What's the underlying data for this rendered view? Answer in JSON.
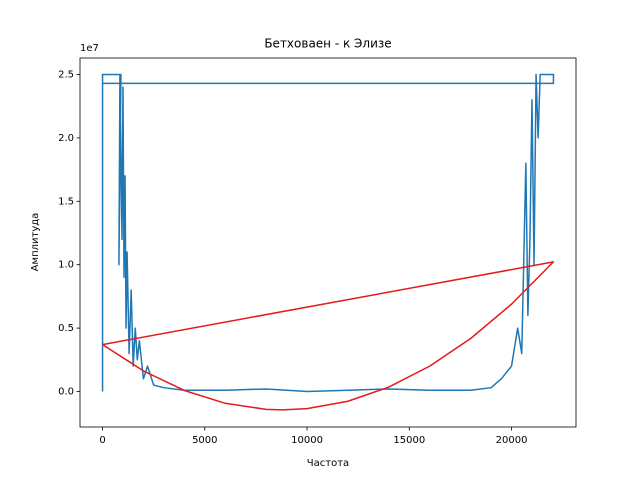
{
  "chart_data": {
    "type": "line",
    "title": "Бетховаен - к Элизе",
    "x_label": "Частота",
    "y_label": "Амплитуда",
    "y_offset_label": "1e7",
    "xlim": [
      -1102.5,
      23152.5
    ],
    "ylim": [
      -0.28,
      2.63
    ],
    "xticks": [
      0,
      5000,
      10000,
      15000,
      20000
    ],
    "yticks": [
      {
        "value": 0,
        "label": "0.0"
      },
      {
        "value": 0.5,
        "label": "0.5"
      },
      {
        "value": 1,
        "label": "1.0"
      },
      {
        "value": 1.5,
        "label": "1.5"
      },
      {
        "value": 2,
        "label": "2.0"
      },
      {
        "value": 2.5,
        "label": "2.5"
      }
    ],
    "series": [
      {
        "color": "#1f77b4",
        "x": [
          0,
          0,
          900,
          800,
          850,
          950,
          1000,
          1050,
          1100,
          1150,
          1200,
          1300,
          1400,
          1500,
          1600,
          1700,
          1800,
          2000,
          2200,
          2500,
          3000,
          4000,
          6000,
          8000,
          10000,
          12000,
          14000,
          16000,
          18000,
          19000,
          19500,
          20000,
          20300,
          20500,
          20700,
          20800,
          20900,
          21000,
          21100,
          21200,
          21300,
          21400,
          21500,
          21900,
          22050,
          22050,
          0
        ],
        "values": [
          0,
          2.5,
          2.5,
          1.0,
          2.5,
          1.2,
          2.4,
          0.9,
          1.7,
          0.5,
          1.1,
          0.3,
          0.8,
          0.2,
          0.5,
          0.25,
          0.4,
          0.1,
          0.2,
          0.05,
          0.03,
          0.01,
          0.01,
          0.02,
          0.0,
          0.01,
          0.02,
          0.01,
          0.01,
          0.03,
          0.1,
          0.2,
          0.5,
          0.3,
          1.8,
          0.6,
          1.2,
          2.3,
          1.0,
          2.5,
          2.0,
          2.5,
          2.5,
          2.5,
          2.5,
          2.43,
          2.43
        ]
      },
      {
        "color": "#e41a1c",
        "x": [
          0,
          2000,
          4000,
          6000,
          8000,
          8800,
          10000,
          12000,
          14000,
          16000,
          18000,
          20000,
          22050,
          0
        ],
        "values": [
          0.37,
          0.1625,
          0.008,
          -0.093,
          -0.141,
          -0.145,
          -0.135,
          -0.077,
          0.035,
          0.2,
          0.418,
          0.689,
          1.022,
          0.37
        ]
      }
    ]
  }
}
